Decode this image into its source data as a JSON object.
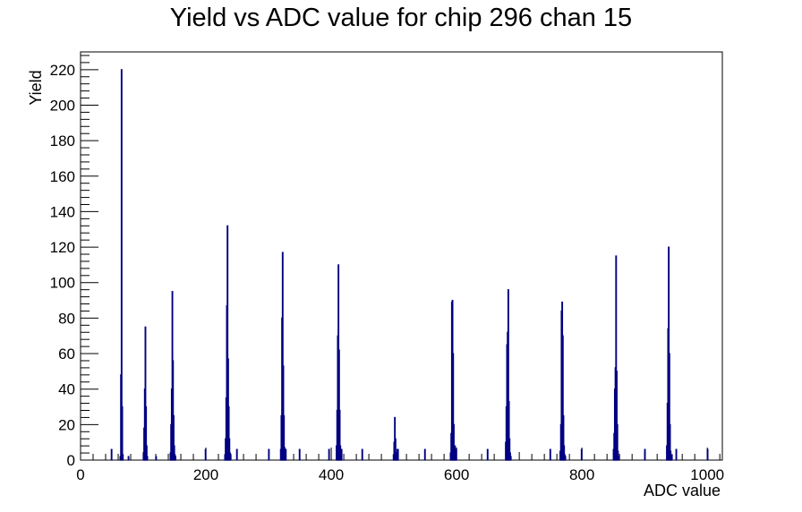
{
  "chart_data": {
    "type": "bar",
    "title": "Yield vs ADC value for chip 296 chan 15",
    "xlabel": "ADC value",
    "ylabel": "Yield",
    "xlim": [
      0,
      1024
    ],
    "ylim": [
      0,
      230
    ],
    "xticks": [
      0,
      200,
      400,
      600,
      800,
      1000
    ],
    "yticks": [
      0,
      20,
      40,
      60,
      80,
      100,
      120,
      140,
      160,
      180,
      200,
      220
    ],
    "series_color": "#000080",
    "series": [
      {
        "name": "",
        "x": [
          49,
          63,
          64,
          65,
          66,
          67,
          76,
          100,
          101,
          102,
          103,
          104,
          105,
          106,
          120,
          143,
          144,
          145,
          146,
          147,
          148,
          149,
          150,
          151,
          199,
          230,
          231,
          232,
          233,
          234,
          235,
          236,
          237,
          238,
          239,
          249,
          300,
          319,
          320,
          321,
          322,
          323,
          324,
          325,
          326,
          327,
          349,
          396,
          408,
          409,
          410,
          411,
          412,
          413,
          414,
          415,
          416,
          449,
          499,
          500,
          501,
          502,
          503,
          504,
          505,
          506,
          549,
          590,
          591,
          592,
          593,
          594,
          595,
          596,
          597,
          598,
          599,
          649,
          678,
          679,
          680,
          681,
          682,
          683,
          684,
          685,
          686,
          749,
          765,
          766,
          767,
          768,
          769,
          770,
          771,
          772,
          773,
          799,
          850,
          851,
          852,
          853,
          854,
          855,
          856,
          857,
          858,
          900,
          935,
          936,
          937,
          938,
          939,
          940,
          941,
          942,
          943,
          950,
          1000
        ],
        "values": [
          6,
          2,
          48,
          220,
          30,
          3,
          2,
          3,
          18,
          40,
          75,
          30,
          8,
          2,
          2,
          4,
          20,
          40,
          95,
          56,
          25,
          8,
          3,
          2,
          6,
          3,
          12,
          35,
          87,
          132,
          57,
          30,
          12,
          4,
          2,
          6,
          6,
          6,
          25,
          80,
          117,
          53,
          25,
          7,
          2,
          6,
          6,
          6,
          8,
          28,
          70,
          110,
          62,
          28,
          8,
          3,
          6,
          6,
          3,
          10,
          24,
          12,
          4,
          2,
          6,
          6,
          6,
          4,
          15,
          89,
          90,
          60,
          20,
          5,
          8,
          2,
          6,
          6,
          10,
          30,
          65,
          72,
          96,
          33,
          12,
          4,
          2,
          6,
          5,
          20,
          84,
          89,
          70,
          25,
          8,
          3,
          2,
          6,
          6,
          15,
          40,
          52,
          115,
          50,
          20,
          5,
          2,
          6,
          8,
          32,
          74,
          120,
          60,
          20,
          5,
          2,
          3,
          6,
          6
        ]
      }
    ]
  }
}
